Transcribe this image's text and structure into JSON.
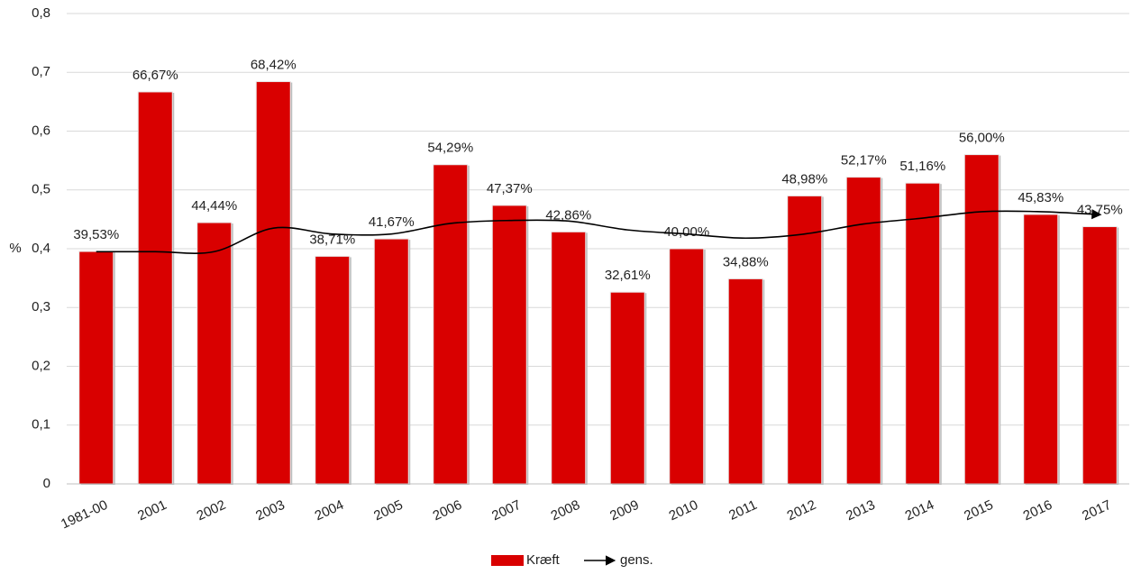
{
  "chart_data": {
    "type": "bar",
    "y_label": "%",
    "categories": [
      "1981-00",
      "2001",
      "2002",
      "2003",
      "2004",
      "2005",
      "2006",
      "2007",
      "2008",
      "2009",
      "2010",
      "2011",
      "2012",
      "2013",
      "2014",
      "2015",
      "2016",
      "2017"
    ],
    "series": [
      {
        "name": "Kræft",
        "type": "bar",
        "color": "#d90000",
        "values": [
          0.3953,
          0.6667,
          0.4444,
          0.6842,
          0.3871,
          0.4167,
          0.5429,
          0.4737,
          0.4286,
          0.3261,
          0.4,
          0.3488,
          0.4898,
          0.5217,
          0.5116,
          0.56,
          0.4583,
          0.4375
        ],
        "value_labels": [
          "39,53%",
          "66,67%",
          "44,44%",
          "68,42%",
          "38,71%",
          "41,67%",
          "54,29%",
          "47,37%",
          "42,86%",
          "32,61%",
          "40,00%",
          "34,88%",
          "48,98%",
          "52,17%",
          "51,16%",
          "56,00%",
          "45,83%",
          "43,75%"
        ]
      },
      {
        "name": "gens.",
        "type": "line",
        "color": "#000000",
        "values": [
          0.395,
          0.395,
          0.395,
          0.435,
          0.425,
          0.425,
          0.443,
          0.448,
          0.447,
          0.432,
          0.425,
          0.418,
          0.425,
          0.442,
          0.452,
          0.463,
          0.463,
          0.458
        ]
      }
    ],
    "ylim": [
      0,
      0.8
    ],
    "yticks": [
      {
        "value": 0,
        "label": "0"
      },
      {
        "value": 0.1,
        "label": "0,1"
      },
      {
        "value": 0.2,
        "label": "0,2"
      },
      {
        "value": 0.3,
        "label": "0,3"
      },
      {
        "value": 0.4,
        "label": "0,4"
      },
      {
        "value": 0.5,
        "label": "0,5"
      },
      {
        "value": 0.6,
        "label": "0,6"
      },
      {
        "value": 0.7,
        "label": "0,7"
      },
      {
        "value": 0.8,
        "label": "0,8"
      }
    ],
    "grid": true,
    "legend": "bottom"
  }
}
